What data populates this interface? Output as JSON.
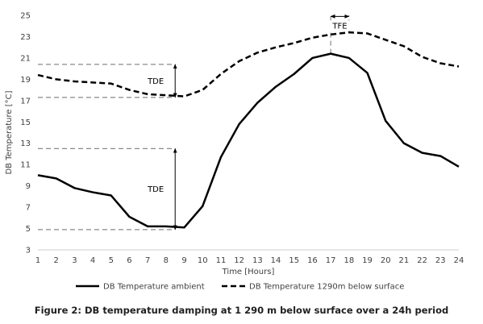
{
  "chart_data": {
    "type": "line",
    "title": "",
    "xlabel": "Time [Hours]",
    "ylabel": "DB Temperature [°C]",
    "x": [
      1,
      2,
      3,
      4,
      5,
      6,
      7,
      8,
      9,
      10,
      11,
      12,
      13,
      14,
      15,
      16,
      17,
      18,
      19,
      20,
      21,
      22,
      23,
      24
    ],
    "xlim": [
      1,
      24
    ],
    "ylim": [
      3,
      25
    ],
    "yticks": [
      3,
      5,
      7,
      9,
      11,
      13,
      15,
      17,
      19,
      21,
      23,
      25
    ],
    "grid": false,
    "legend_position": "bottom",
    "series": [
      {
        "name": "DB Temperature ambient",
        "style": "solid",
        "color": "#000000",
        "values": [
          10.0,
          9.7,
          8.8,
          8.4,
          8.1,
          6.1,
          5.2,
          5.2,
          5.1,
          7.1,
          11.7,
          14.8,
          16.8,
          18.3,
          19.5,
          21.0,
          21.4,
          21.0,
          19.6,
          15.1,
          13.0,
          12.1,
          11.8,
          10.8
        ]
      },
      {
        "name": "DB Temperature 1290m below surface",
        "style": "dashed",
        "color": "#000000",
        "values": [
          19.4,
          19.0,
          18.8,
          18.7,
          18.6,
          18.0,
          17.6,
          17.5,
          17.4,
          18.0,
          19.5,
          20.7,
          21.5,
          22.0,
          22.4,
          22.9,
          23.2,
          23.4,
          23.3,
          22.7,
          22.1,
          21.1,
          20.5,
          20.2
        ]
      }
    ],
    "annotations": [
      {
        "label": "TDE",
        "type": "range-arrow",
        "x": 8.5,
        "from": 17.3,
        "to": 20.4
      },
      {
        "label": "TDE",
        "type": "range-arrow",
        "x": 8.5,
        "from": 4.9,
        "to": 12.5
      },
      {
        "label": "TFE",
        "type": "phase-arrow",
        "y": 24.9,
        "from": 17,
        "to": 18
      }
    ],
    "guide_lines": [
      {
        "y": 20.4,
        "x_from": 1,
        "x_to": 8.5
      },
      {
        "y": 17.3,
        "x_from": 1,
        "x_to": 8.5
      },
      {
        "y": 12.5,
        "x_from": 1,
        "x_to": 8.5
      },
      {
        "y": 4.9,
        "x_from": 1,
        "x_to": 8.5
      },
      {
        "x": 17,
        "y_from": 21.4,
        "y_to": 25
      },
      {
        "x": 18,
        "y_from": 23.4,
        "y_to": 25
      }
    ]
  },
  "caption": "Figure 2: DB temperature damping at 1 290 m below surface over a 24h period"
}
